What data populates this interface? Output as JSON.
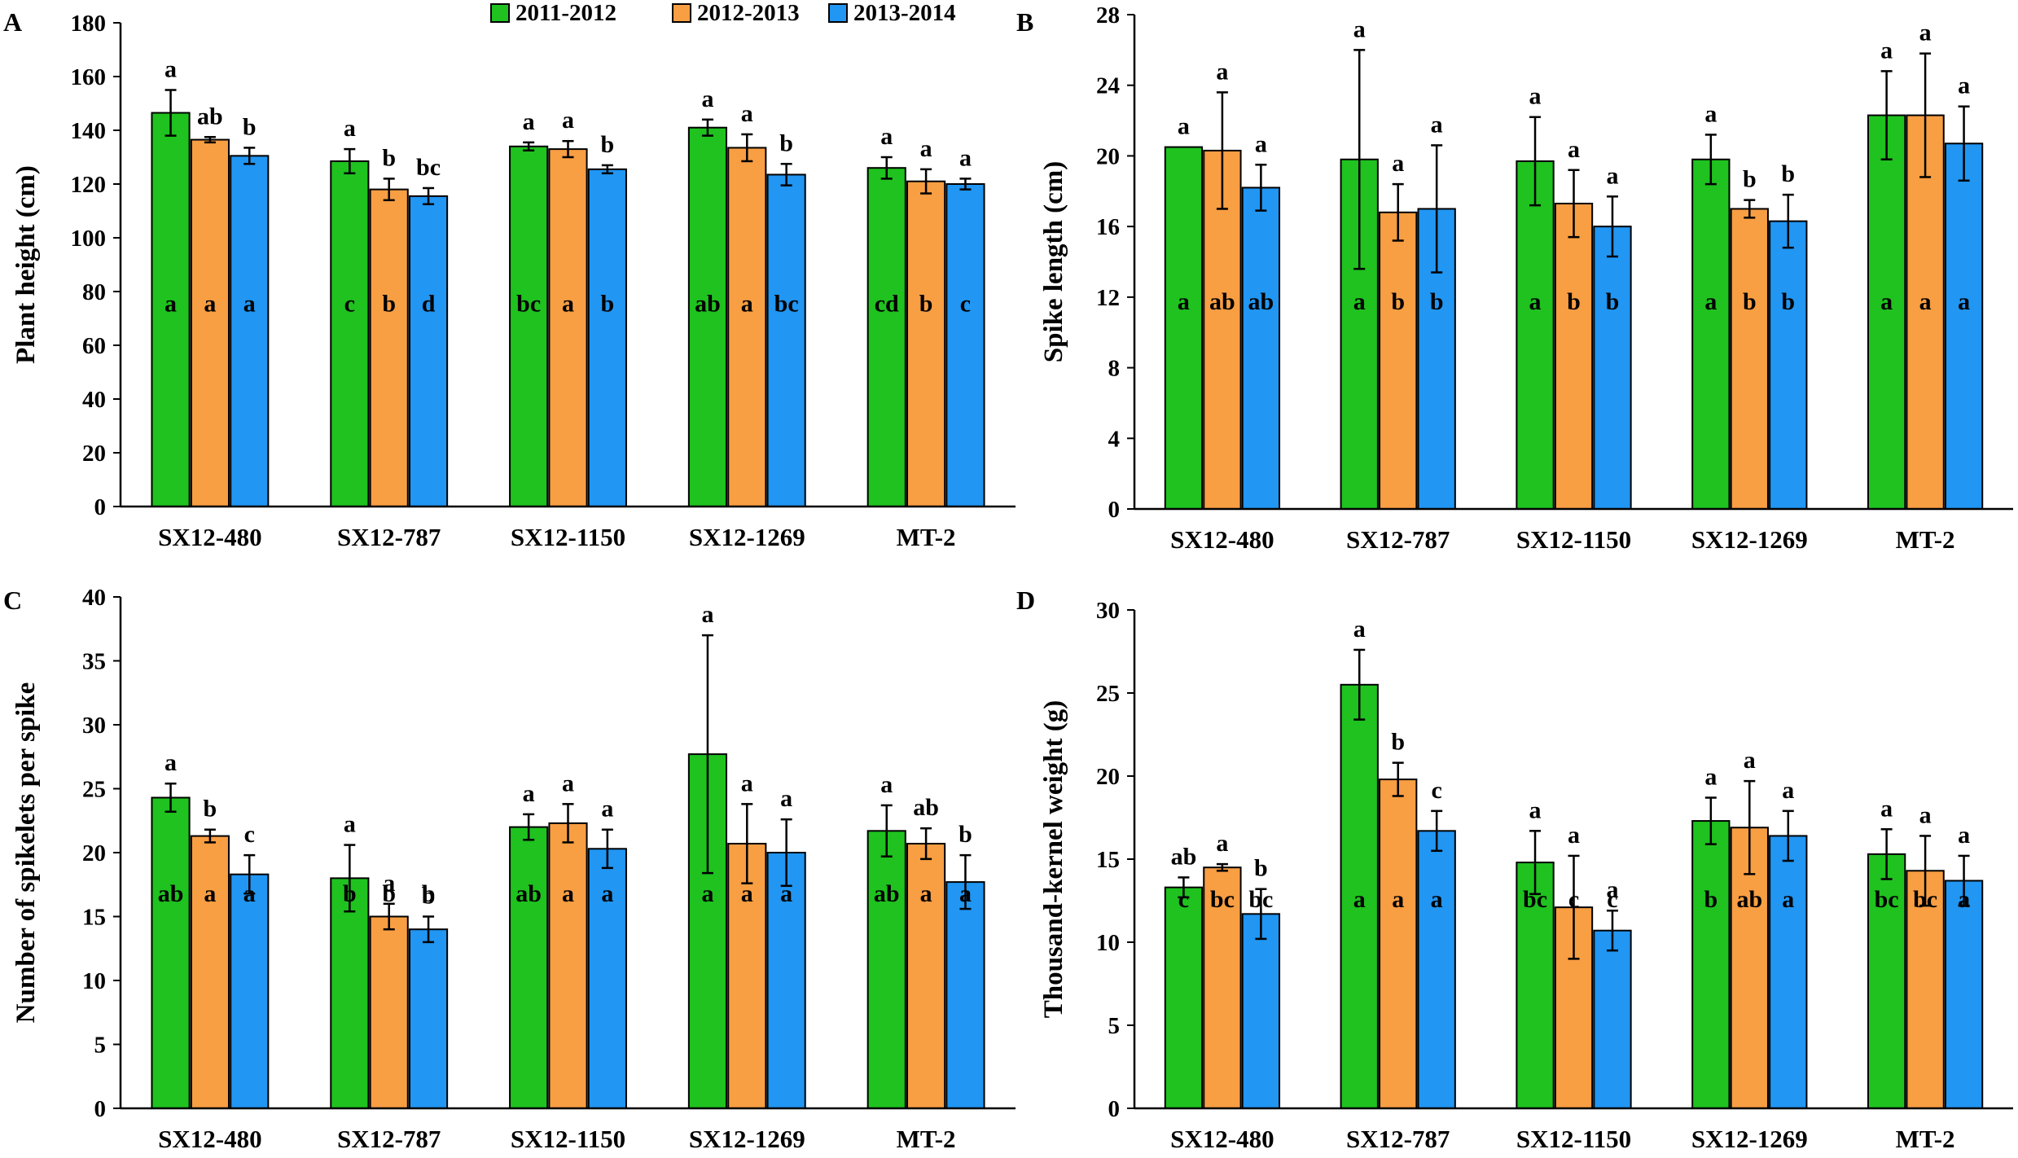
{
  "colors": {
    "s2011": "#1fc21f",
    "s2012": "#f89e43",
    "s2013": "#2196f3"
  },
  "legend": [
    {
      "name": "2011-2012",
      "color_key": "s2011"
    },
    {
      "name": "2012-2013",
      "color_key": "s2012"
    },
    {
      "name": "2013-2014",
      "color_key": "s2013"
    }
  ],
  "chart_data": [
    {
      "type": "bar",
      "panel": "A",
      "ylabel": "Plant height (cm)",
      "ylim": [
        0,
        180
      ],
      "ytick_step": 20,
      "categories": [
        "SX12-480",
        "SX12-787",
        "SX12-1150",
        "SX12-1269",
        "MT-2"
      ],
      "series": [
        {
          "name": "2011-2012",
          "values": [
            146.5,
            128.5,
            134,
            141,
            126
          ],
          "errors": [
            8.5,
            4.5,
            1.5,
            3,
            4
          ],
          "top_letters": [
            "a",
            "a",
            "a",
            "a",
            "a"
          ],
          "inner_letters": [
            "a",
            "c",
            "bc",
            "ab",
            "cd"
          ]
        },
        {
          "name": "2012-2013",
          "values": [
            136.5,
            118,
            133,
            133.5,
            121
          ],
          "errors": [
            1,
            4,
            3,
            5,
            4.5
          ],
          "top_letters": [
            "ab",
            "b",
            "a",
            "a",
            "a"
          ],
          "inner_letters": [
            "a",
            "b",
            "a",
            "a",
            "b"
          ]
        },
        {
          "name": "2013-2014",
          "values": [
            130.5,
            115.5,
            125.5,
            123.5,
            120
          ],
          "errors": [
            3,
            3,
            1.5,
            4,
            2
          ],
          "top_letters": [
            "b",
            "bc",
            "b",
            "b",
            "a"
          ],
          "inner_letters": [
            "a",
            "d",
            "b",
            "bc",
            "c"
          ]
        }
      ]
    },
    {
      "type": "bar",
      "panel": "B",
      "ylabel": "Spike length (cm)",
      "ylim": [
        0,
        28
      ],
      "ytick_step": 4,
      "categories": [
        "SX12-480",
        "SX12-787",
        "SX12-1150",
        "SX12-1269",
        "MT-2"
      ],
      "series": [
        {
          "name": "2011-2012",
          "values": [
            20.5,
            19.8,
            19.7,
            19.8,
            22.3
          ],
          "errors": [
            0,
            6.2,
            2.5,
            1.4,
            2.5
          ],
          "top_letters": [
            "a",
            "a",
            "a",
            "a",
            "a"
          ],
          "inner_letters": [
            "a",
            "a",
            "a",
            "a",
            "a"
          ]
        },
        {
          "name": "2012-2013",
          "values": [
            20.3,
            16.8,
            17.3,
            17,
            22.3
          ],
          "errors": [
            3.3,
            1.6,
            1.9,
            0.5,
            3.5
          ],
          "top_letters": [
            "a",
            "a",
            "a",
            "b",
            "a"
          ],
          "inner_letters": [
            "ab",
            "b",
            "b",
            "b",
            "a"
          ]
        },
        {
          "name": "2013-2014",
          "values": [
            18.2,
            17,
            16,
            16.3,
            20.7
          ],
          "errors": [
            1.3,
            3.6,
            1.7,
            1.5,
            2.1
          ],
          "top_letters": [
            "a",
            "a",
            "a",
            "b",
            "a"
          ],
          "inner_letters": [
            "ab",
            "b",
            "b",
            "b",
            "a"
          ]
        }
      ]
    },
    {
      "type": "bar",
      "panel": "C",
      "ylabel": "Number of spikelets per spike",
      "ylim": [
        0,
        40
      ],
      "ytick_step": 5,
      "categories": [
        "SX12-480",
        "SX12-787",
        "SX12-1150",
        "SX12-1269",
        "MT-2"
      ],
      "series": [
        {
          "name": "2011-2012",
          "values": [
            24.3,
            18,
            22,
            27.7,
            21.7
          ],
          "errors": [
            1.1,
            2.6,
            1,
            9.3,
            2
          ],
          "top_letters": [
            "a",
            "a",
            "a",
            "a",
            "a"
          ],
          "inner_letters": [
            "ab",
            "b",
            "ab",
            "a",
            "ab"
          ]
        },
        {
          "name": "2012-2013",
          "values": [
            21.3,
            15,
            22.3,
            20.7,
            20.7
          ],
          "errors": [
            0.5,
            1,
            1.5,
            3.1,
            1.2
          ],
          "top_letters": [
            "b",
            "a",
            "a",
            "a",
            "ab"
          ],
          "inner_letters": [
            "a",
            "b",
            "a",
            "a",
            "a"
          ]
        },
        {
          "name": "2013-2014",
          "values": [
            18.3,
            14,
            20.3,
            20,
            17.7
          ],
          "errors": [
            1.5,
            1,
            1.5,
            2.6,
            2.1
          ],
          "top_letters": [
            "c",
            "b",
            "a",
            "a",
            "b"
          ],
          "inner_letters": [
            "a",
            "b",
            "a",
            "a",
            "a"
          ]
        }
      ]
    },
    {
      "type": "bar",
      "panel": "D",
      "ylabel": "Thousand-kernel weight (g)",
      "ylim": [
        0,
        30
      ],
      "ytick_step": 5,
      "categories": [
        "SX12-480",
        "SX12-787",
        "SX12-1150",
        "SX12-1269",
        "MT-2"
      ],
      "series": [
        {
          "name": "2011-2012",
          "values": [
            13.3,
            25.5,
            14.8,
            17.3,
            15.3
          ],
          "errors": [
            0.6,
            2.1,
            1.9,
            1.4,
            1.5
          ],
          "top_letters": [
            "ab",
            "a",
            "a",
            "a",
            "a"
          ],
          "inner_letters": [
            "c",
            "a",
            "bc",
            "b",
            "bc"
          ]
        },
        {
          "name": "2012-2013",
          "values": [
            14.5,
            19.8,
            12.1,
            16.9,
            14.3
          ],
          "errors": [
            0.2,
            1,
            3.1,
            2.8,
            2.1
          ],
          "top_letters": [
            "a",
            "b",
            "a",
            "a",
            "a"
          ],
          "inner_letters": [
            "bc",
            "a",
            "c",
            "ab",
            "bc"
          ]
        },
        {
          "name": "2013-2014",
          "values": [
            11.7,
            16.7,
            10.7,
            16.4,
            13.7
          ],
          "errors": [
            1.5,
            1.2,
            1.2,
            1.5,
            1.5
          ],
          "top_letters": [
            "b",
            "c",
            "a",
            "a",
            "a"
          ],
          "inner_letters": [
            "bc",
            "a",
            "c",
            "a",
            "a"
          ]
        }
      ]
    }
  ]
}
